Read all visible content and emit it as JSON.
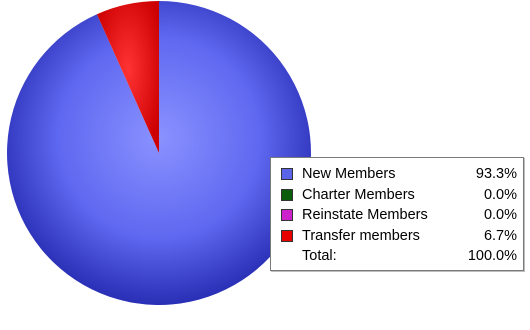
{
  "chart_data": {
    "type": "pie",
    "title": "",
    "categories": [
      "New Members",
      "Charter Members",
      "Reinstate Members",
      "Transfer members"
    ],
    "values": [
      93.3,
      0.0,
      0.0,
      6.7
    ],
    "value_labels": [
      "93.3%",
      "0.0%",
      "0.0%",
      "6.7%"
    ],
    "colors": [
      "#5a64e6",
      "#0b5c0b",
      "#cc22cc",
      "#e60000"
    ],
    "total_label": "Total:",
    "total_value": "100.0%",
    "legend_position": "right"
  }
}
